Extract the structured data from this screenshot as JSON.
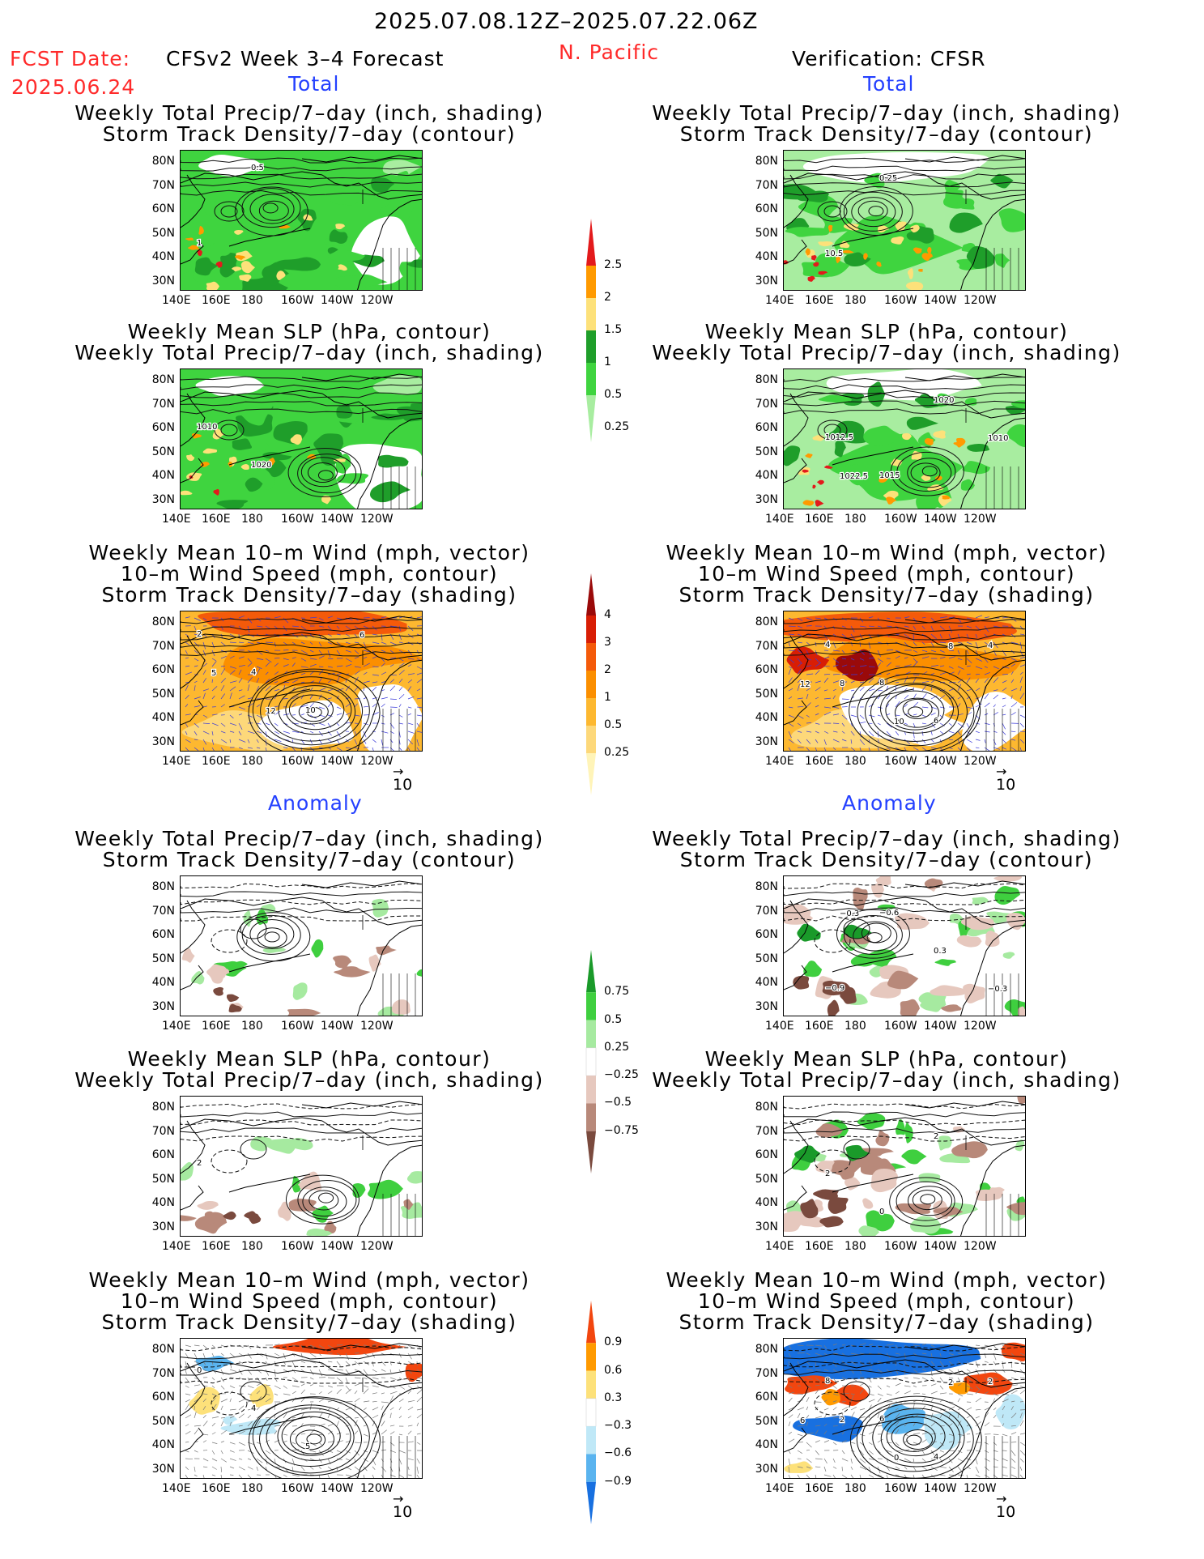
{
  "header": {
    "period": "2025.07.08.12Z–2025.07.22.06Z",
    "fcst_label": "FCST Date:",
    "fcst_date": "2025.06.24",
    "model_title": "CFSv2 Week 3–4 Forecast",
    "region": "N. Pacific",
    "verification": "Verification: CFSR"
  },
  "sections": {
    "total": "Total",
    "anomaly": "Anomaly"
  },
  "titles": {
    "precip_storm": [
      "Weekly Total Precip/7–day (inch, shading)",
      "Storm Track Density/7–day (contour)"
    ],
    "slp_precip": [
      "Weekly Mean SLP (hPa, contour)",
      "Weekly Total Precip/7–day (inch, shading)"
    ],
    "wind_storm": [
      "Weekly Mean 10–m Wind (mph, vector)",
      "10–m Wind Speed (mph, contour)",
      "Storm Track Density/7–day (shading)"
    ]
  },
  "axes": {
    "lat_labels": [
      "80N",
      "70N",
      "60N",
      "50N",
      "40N",
      "30N"
    ],
    "lon_labels": [
      "140E",
      "160E",
      "180",
      "160W",
      "140W",
      "120W"
    ]
  },
  "vector_ref": "10",
  "colorbars": {
    "precip_total": {
      "labels": [
        "2.5",
        "2",
        "1.5",
        "1",
        "0.5",
        "0.25"
      ],
      "colors": [
        "#e31a1c",
        "#ff9a00",
        "#fde17a",
        "#1f9e2a",
        "#3fd43f",
        "#a8eda0"
      ]
    },
    "storm_total": {
      "labels": [
        "4",
        "3",
        "2",
        "1",
        "0.5",
        "0.25"
      ],
      "colors": [
        "#9a0a0a",
        "#d81e05",
        "#f45a0a",
        "#fb8f00",
        "#fdb830",
        "#fdd87a",
        "#fff4b8"
      ]
    },
    "precip_anom": {
      "labels": [
        "0.75",
        "0.5",
        "0.25",
        "−0.25",
        "−0.5",
        "−0.75"
      ],
      "colors": [
        "#1a9a2a",
        "#3fcf3f",
        "#a6eaa0",
        "#ffffff",
        "#e6c8be",
        "#b8897a",
        "#7a4a3e"
      ]
    },
    "storm_anom": {
      "labels": [
        "0.9",
        "0.6",
        "0.3",
        "−0.3",
        "−0.6",
        "−0.9"
      ],
      "colors": [
        "#f2460f",
        "#ff9a00",
        "#fde17a",
        "#ffffff",
        "#bfe8f7",
        "#5ab4ef",
        "#1870e0"
      ]
    }
  },
  "contour_labels": {
    "fc_total_precip": [
      "1",
      "0.5"
    ],
    "ver_total_precip": [
      "10.5",
      "0.25"
    ],
    "fc_total_slp": [
      "1010",
      "1020"
    ],
    "ver_total_slp": [
      "1012.5",
      "1015",
      "1020",
      "1010",
      "1022.5"
    ],
    "fc_total_wind": [
      "2",
      "4",
      "10",
      "6",
      "5",
      "12"
    ],
    "ver_total_wind": [
      "4",
      "8",
      "6",
      "4",
      "8",
      "10",
      "8",
      "12"
    ],
    "ver_anom_precip": [
      "−0.9",
      "−0.6",
      "0.3",
      "−0.3",
      "−0.3"
    ],
    "fc_anom_slp": [
      "2"
    ],
    "ver_anom_slp": [
      "2",
      "0",
      "2"
    ],
    "fc_anom_wind": [
      "0",
      "4",
      "5"
    ],
    "ver_anom_wind": [
      "8",
      "6",
      "4",
      "2",
      "2",
      "0",
      "2",
      "6"
    ]
  }
}
